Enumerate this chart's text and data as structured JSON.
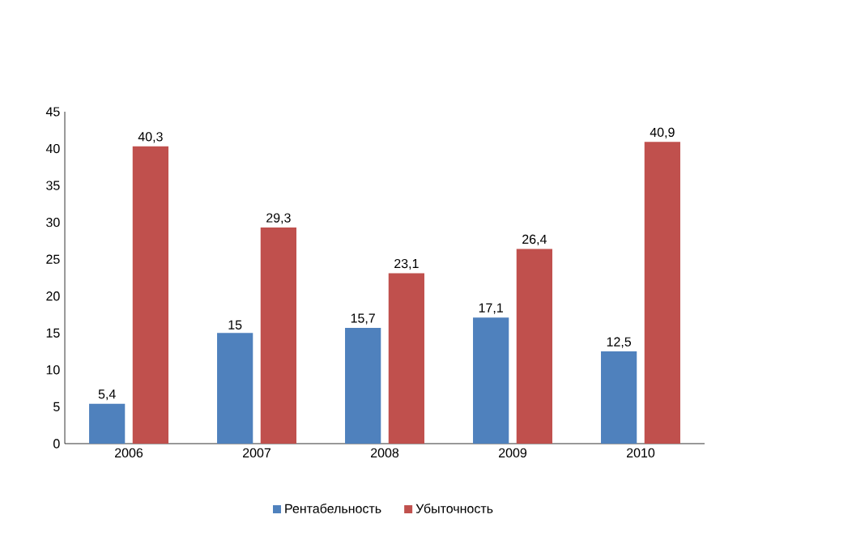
{
  "chart_data": {
    "type": "bar",
    "categories": [
      "2006",
      "2007",
      "2008",
      "2009",
      "2010"
    ],
    "series": [
      {
        "name": "Рентабельность",
        "color": "#4f81bd",
        "values": [
          5.4,
          15,
          15.7,
          17.1,
          12.5
        ],
        "value_labels": [
          "5,4",
          "15",
          "15,7",
          "17,1",
          "12,5"
        ]
      },
      {
        "name": "Убыточность",
        "color": "#c0504d",
        "values": [
          40.3,
          29.3,
          23.1,
          26.4,
          40.9
        ],
        "value_labels": [
          "40,3",
          "29,3",
          "23,1",
          "26,4",
          "40,9"
        ]
      }
    ],
    "ylim": [
      0,
      45
    ],
    "yticks": [
      0,
      5,
      10,
      15,
      20,
      25,
      30,
      35,
      40,
      45
    ],
    "grid": false,
    "legend": "bottom"
  }
}
